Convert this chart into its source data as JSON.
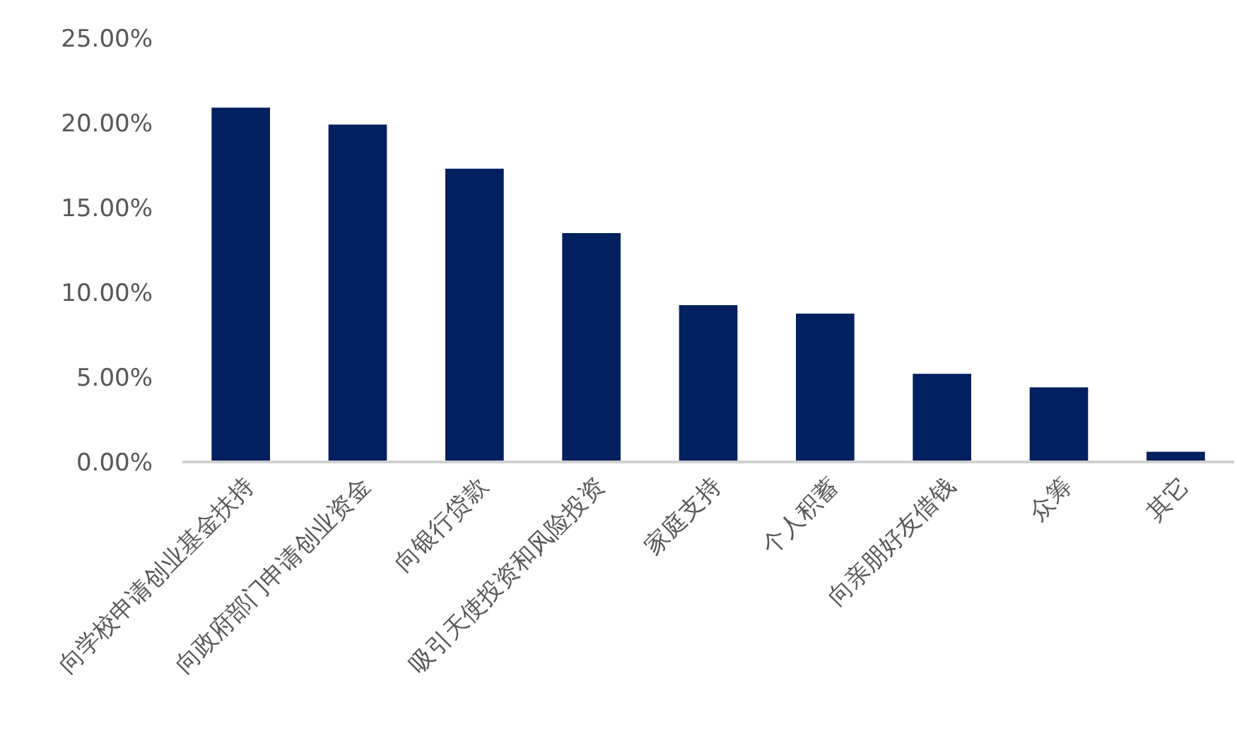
{
  "chart_data": {
    "type": "bar",
    "categories": [
      "向学校申请创业基金扶持",
      "向政府部门申请创业资金",
      "向银行贷款",
      "吸引天使投资和风险投资",
      "家庭支持",
      "个人积蓄",
      "向亲朋好友借钱",
      "众筹",
      "其它"
    ],
    "values": [
      20.9,
      19.9,
      17.3,
      13.5,
      9.25,
      8.75,
      5.2,
      4.4,
      0.6
    ],
    "color": "#002060",
    "ylim": [
      0,
      25
    ],
    "yticks": [
      {
        "value": 0,
        "label": "0.00%"
      },
      {
        "value": 5,
        "label": "5.00%"
      },
      {
        "value": 10,
        "label": "10.00%"
      },
      {
        "value": 15,
        "label": "15.00%"
      },
      {
        "value": 20,
        "label": "20.00%"
      },
      {
        "value": 25,
        "label": "25.00%"
      }
    ],
    "grid": false
  }
}
